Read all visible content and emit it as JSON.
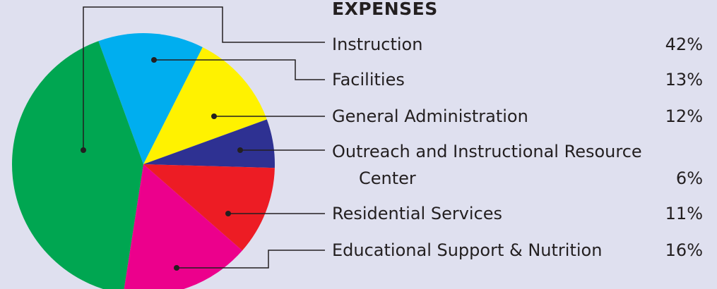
{
  "chart_data": {
    "type": "pie",
    "title": "EXPENSES",
    "categories": [
      "Instruction",
      "Facilities",
      "General Administration",
      "Outreach and Instructional Resource Center",
      "Residential Services",
      "Educational Support & Nutrition"
    ],
    "values": [
      42,
      13,
      12,
      6,
      11,
      16
    ],
    "value_labels": [
      "42%",
      "13%",
      "12%",
      "6%",
      "11%",
      "16%"
    ],
    "colors": [
      "#00a651",
      "#00aeef",
      "#fff200",
      "#2e3192",
      "#ed1c24",
      "#ec008c"
    ]
  }
}
